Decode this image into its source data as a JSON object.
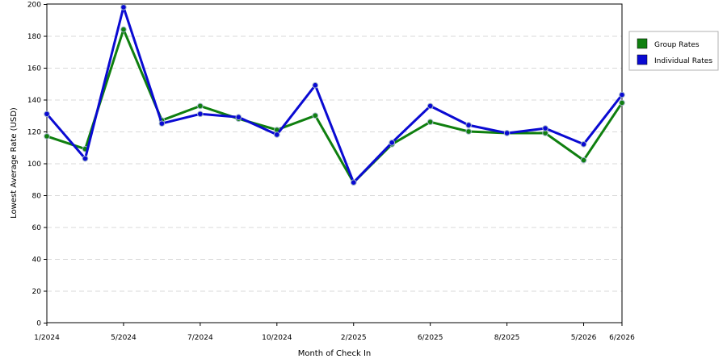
{
  "chart_data": {
    "type": "line",
    "title": "",
    "xlabel": "Month of Check In",
    "ylabel": "Lowest Average Rate (USD)",
    "ylim": [
      0,
      200
    ],
    "yticks": [
      0,
      20,
      40,
      60,
      80,
      100,
      120,
      140,
      160,
      180,
      200
    ],
    "grid": true,
    "legend_position": "right",
    "x_tick_labels": [
      {
        "label": "1/2024",
        "index": 0
      },
      {
        "label": "5/2024",
        "index": 2
      },
      {
        "label": "7/2024",
        "index": 4
      },
      {
        "label": "10/2024",
        "index": 6
      },
      {
        "label": "2/2025",
        "index": 8
      },
      {
        "label": "6/2025",
        "index": 10
      },
      {
        "label": "8/2025",
        "index": 12
      },
      {
        "label": "5/2026",
        "index": 14
      },
      {
        "label": "6/2026",
        "index": 15
      }
    ],
    "point_count": 16,
    "series": [
      {
        "name": "Group Rates",
        "color": "#0f7f0f",
        "values": [
          117,
          109,
          184,
          127,
          136,
          128,
          121,
          130,
          88,
          112,
          126,
          120,
          119,
          119,
          102,
          138
        ]
      },
      {
        "name": "Individual Rates",
        "color": "#0a0ad2",
        "values": [
          131,
          103,
          198,
          125,
          131,
          129,
          118,
          149,
          88,
          113,
          136,
          124,
          119,
          122,
          112,
          143
        ]
      }
    ]
  }
}
